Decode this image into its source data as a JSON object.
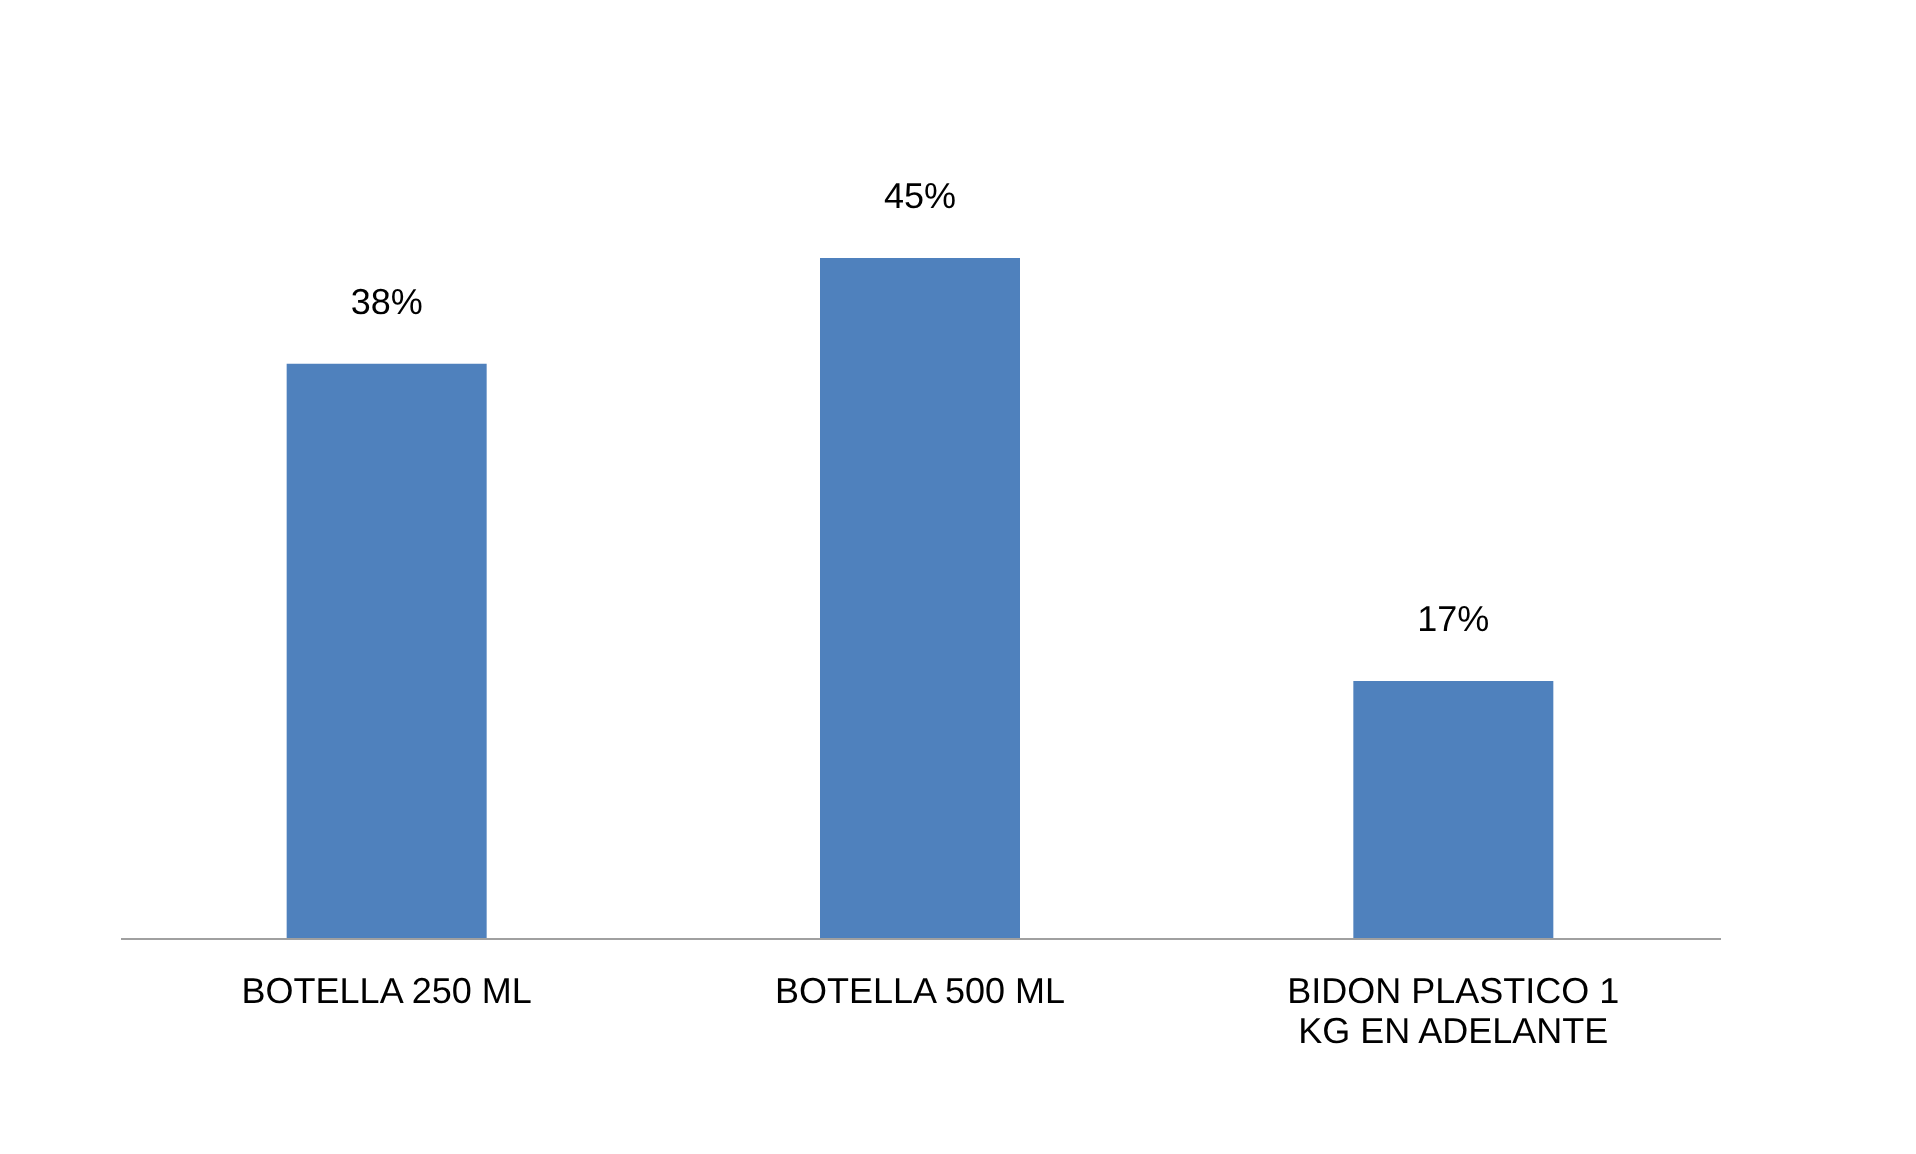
{
  "chart_data": {
    "type": "bar",
    "categories": [
      "BOTELLA 250 ML",
      "BOTELLA 500 ML",
      "BIDON PLASTICO 1\nKG EN ADELANTE"
    ],
    "values": [
      38,
      45,
      17
    ],
    "value_labels": [
      "38%",
      "45%",
      "17%"
    ],
    "color": "#4f81bd",
    "grid": false
  }
}
